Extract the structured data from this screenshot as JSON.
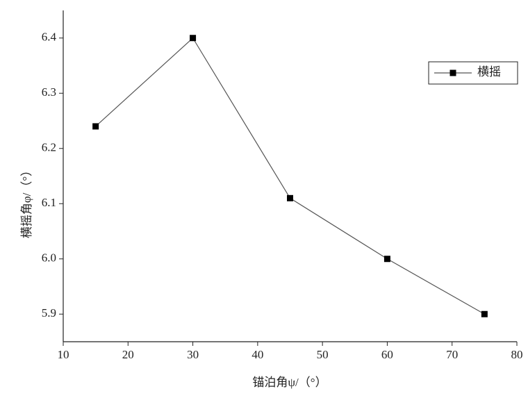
{
  "chart_data": {
    "type": "line",
    "x_label": "锚泊角ψ/（°）",
    "y_label": "横摇角φ/（°）",
    "x": [
      15,
      30,
      45,
      60,
      75
    ],
    "series": [
      {
        "name": "横摇",
        "color": "#000000",
        "values": [
          6.24,
          6.4,
          6.11,
          6.0,
          5.9
        ]
      }
    ],
    "xlim": [
      10,
      80
    ],
    "xticks": [
      10,
      20,
      30,
      40,
      50,
      60,
      70,
      80
    ],
    "ylim": [
      5.85,
      6.45
    ],
    "yticks": [
      5.9,
      {
        "value": 6,
        "label": "6.0"
      },
      6.1,
      6.2,
      6.3,
      6.4
    ],
    "legend": "upper right",
    "grid": false
  }
}
